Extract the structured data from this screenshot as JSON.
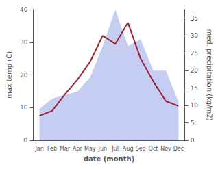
{
  "chart_data": {
    "type": "line",
    "x_label": "date (month)",
    "y_label": "max temp (C)",
    "y2_label": "med. precipitation (kg/m2)",
    "categories": [
      "Jan",
      "Feb",
      "Mar",
      "Apr",
      "May",
      "Jun",
      "Jul",
      "Aug",
      "Sep",
      "Oct",
      "Nov",
      "Dec"
    ],
    "series": [
      {
        "type": "area",
        "axis": "y2",
        "color": "#c5cdf2",
        "values": [
          9.0,
          12.0,
          13.0,
          14.0,
          18.0,
          27.0,
          37.5,
          27.0,
          29.0,
          20.0,
          20.0,
          11.0
        ]
      },
      {
        "type": "line",
        "color": "#992233",
        "values": [
          7.5,
          9.0,
          14.0,
          18.5,
          24.0,
          32.0,
          29.5,
          36.0,
          25.0,
          18.0,
          12.0,
          10.5
        ]
      }
    ],
    "ylim": [
      0,
      40
    ],
    "yticks": [
      0,
      10,
      20,
      30,
      40
    ],
    "y2lim": [
      0,
      37.5
    ],
    "y2ticks": [
      0,
      5,
      10,
      15,
      20,
      25,
      30,
      35
    ],
    "grid": false
  }
}
